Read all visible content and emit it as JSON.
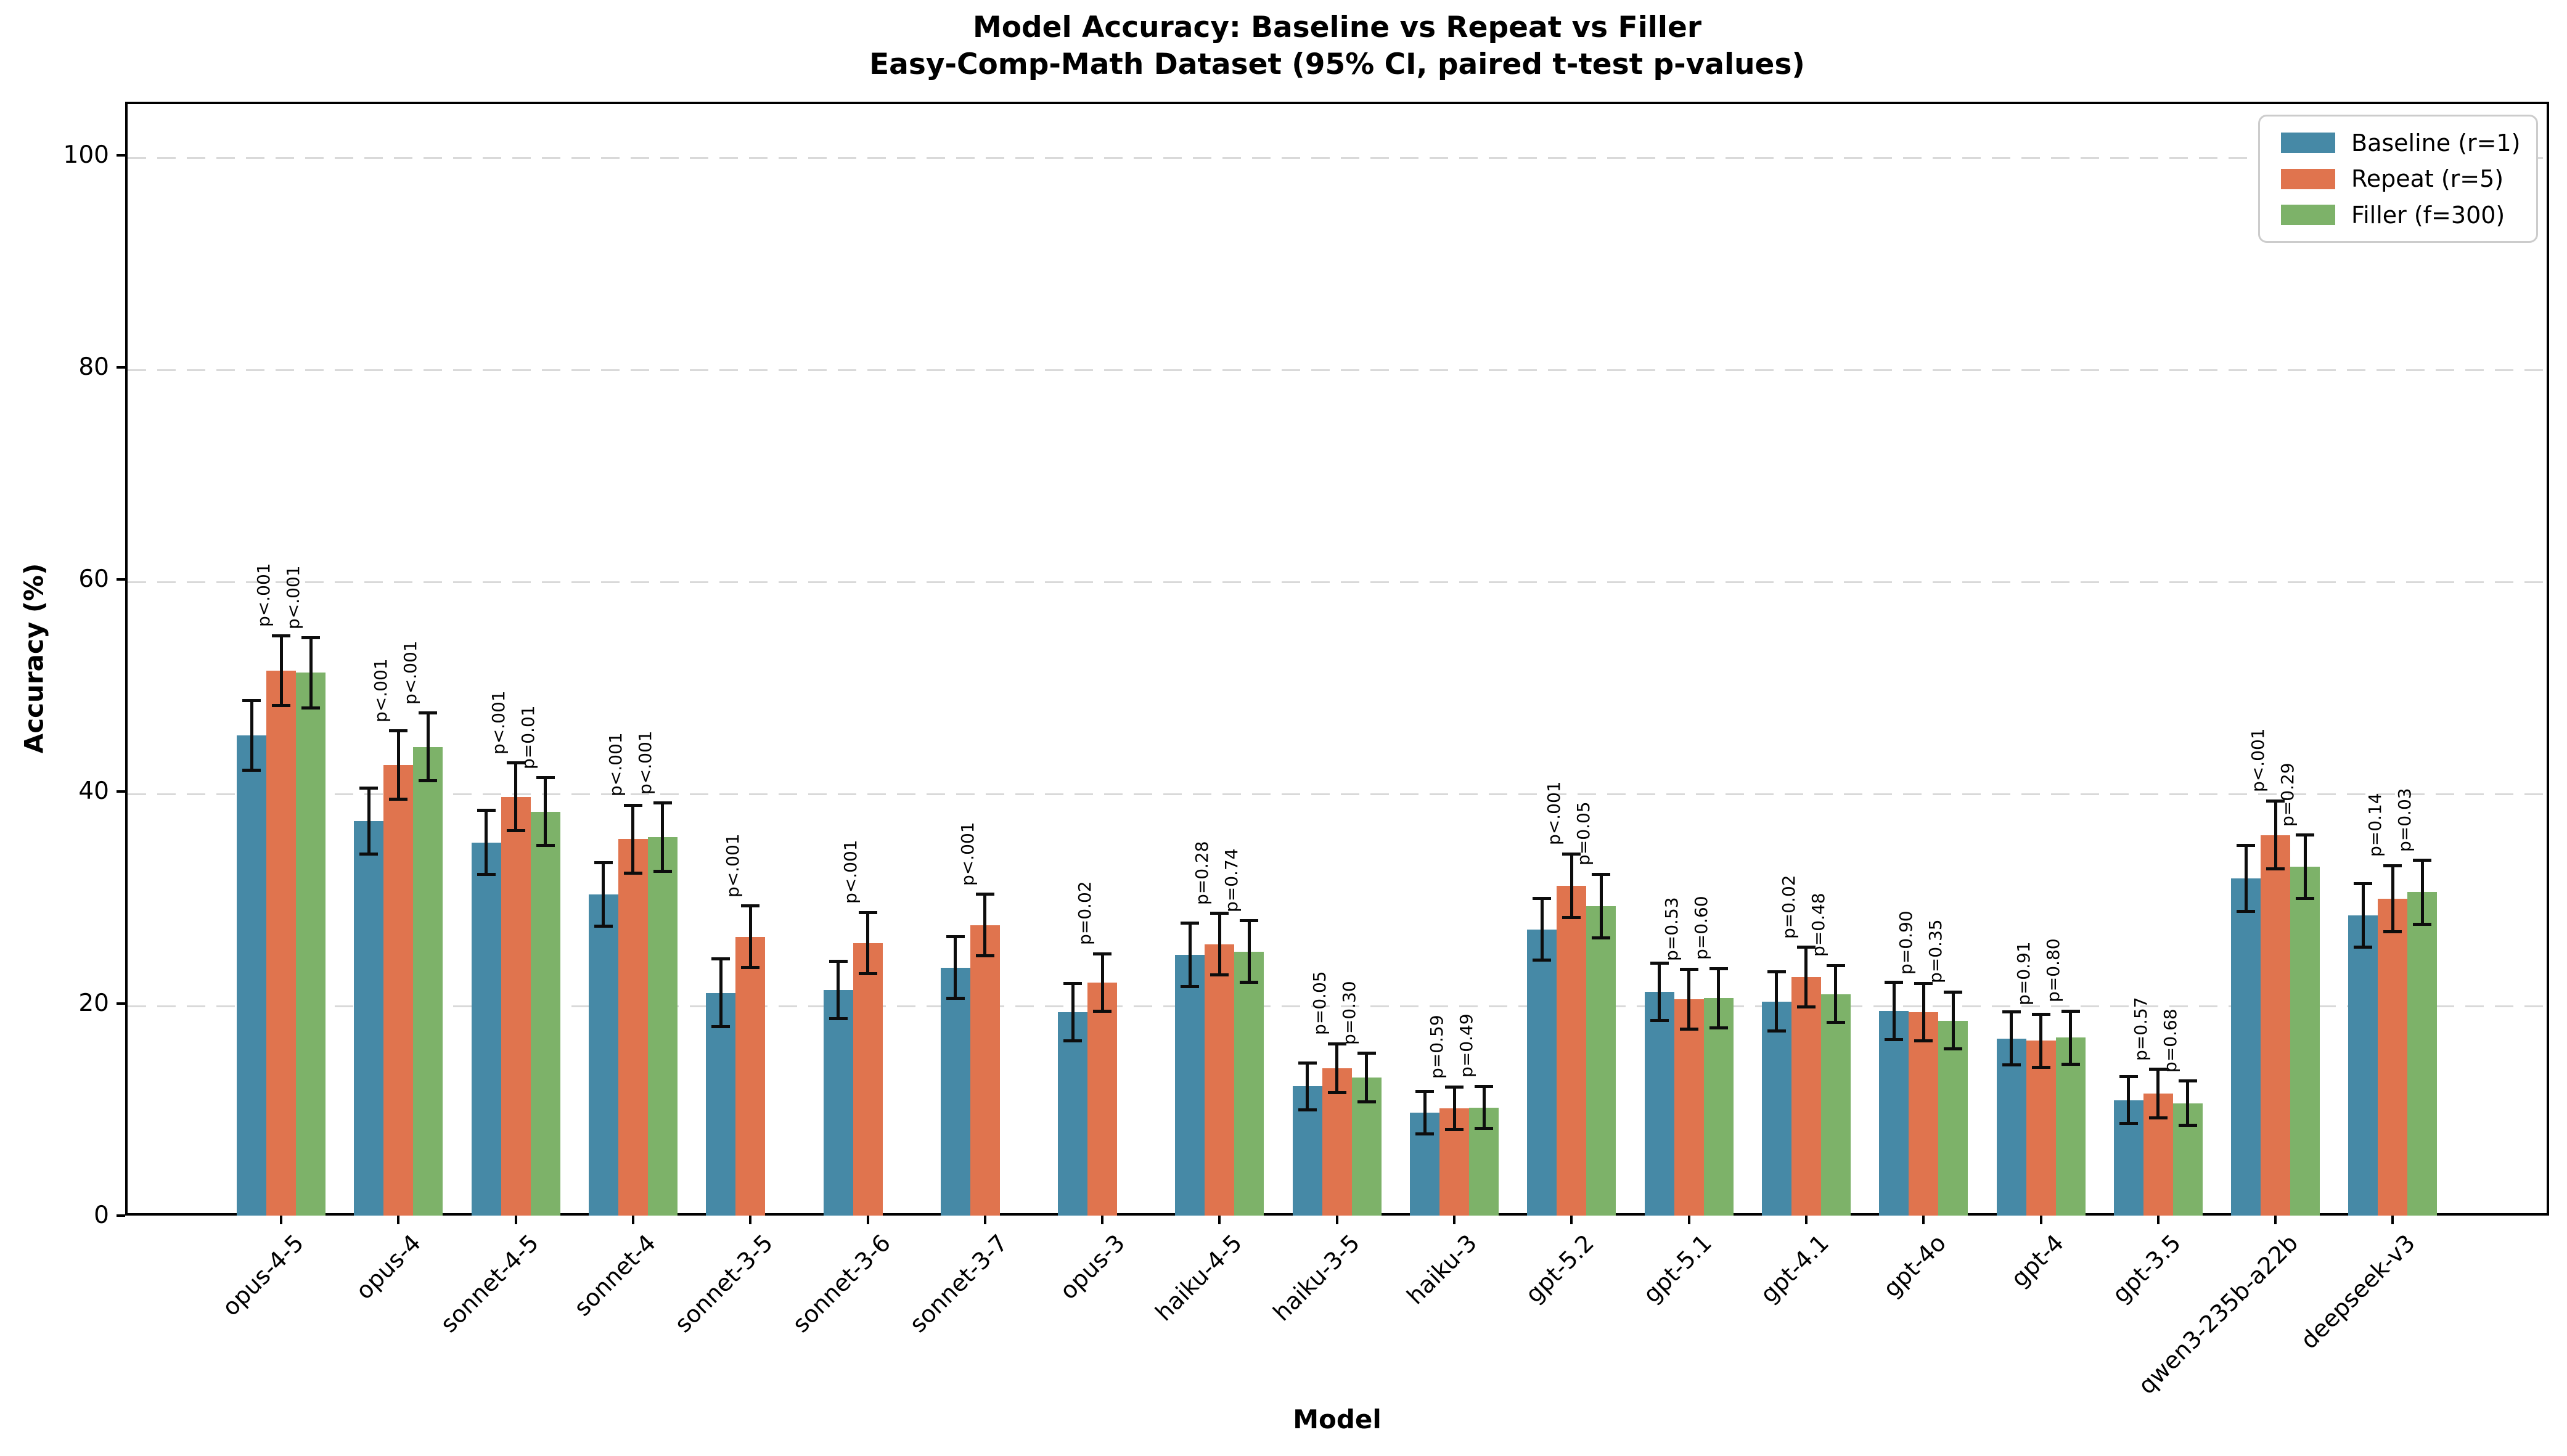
{
  "title": "Model Accuracy: Baseline vs Repeat vs Filler",
  "subtitle": "Easy-Comp-Math Dataset (95% CI, paired t-test p-values)",
  "axes": {
    "ylabel": "Accuracy (%)",
    "xlabel": "Model",
    "yticks": [
      0,
      20,
      40,
      60,
      80,
      100
    ],
    "ylim": [
      0,
      105
    ],
    "grid": "dashed horizontal"
  },
  "legend": {
    "position": "top-right",
    "items": [
      {
        "label": "Baseline (r=1)",
        "color": "#4689A6"
      },
      {
        "label": "Repeat (r=5)",
        "color": "#E0744E"
      },
      {
        "label": "Filler (f=300)",
        "color": "#7DB269"
      }
    ]
  },
  "chart_data": {
    "type": "bar",
    "title": "Model Accuracy: Baseline vs Repeat vs Filler",
    "subtitle": "Easy-Comp-Math Dataset (95% CI, paired t-test p-values)",
    "xlabel": "Model",
    "ylabel": "Accuracy (%)",
    "ylim": [
      0,
      105
    ],
    "legend_position": "upper right",
    "grid": true,
    "categories": [
      "opus-4-5",
      "opus-4",
      "sonnet-4-5",
      "sonnet-4",
      "sonnet-3-5",
      "sonnet-3-6",
      "sonnet-3-7",
      "opus-3",
      "haiku-4-5",
      "haiku-3-5",
      "haiku-3",
      "gpt-5.2",
      "gpt-5.1",
      "gpt-4.1",
      "gpt-4o",
      "gpt-4",
      "gpt-3.5",
      "qwen3-235b-a22b",
      "deepseek-v3"
    ],
    "series": [
      {
        "name": "Baseline (r=1)",
        "color": "#4689A6",
        "values": [
          45.3,
          37.2,
          35.2,
          30.3,
          21.0,
          21.3,
          23.4,
          19.2,
          24.6,
          12.2,
          9.7,
          27.0,
          21.1,
          20.2,
          19.3,
          16.7,
          10.9,
          31.8,
          28.3
        ],
        "errors": [
          3.3,
          3.1,
          3.0,
          3.0,
          3.2,
          2.7,
          2.9,
          2.7,
          3.0,
          2.2,
          2.0,
          2.9,
          2.7,
          2.8,
          2.7,
          2.5,
          2.2,
          3.1,
          3.0
        ],
        "p_labels": [
          null,
          null,
          null,
          null,
          null,
          null,
          null,
          null,
          null,
          null,
          null,
          null,
          null,
          null,
          null,
          null,
          null,
          null,
          null
        ]
      },
      {
        "name": "Repeat (r=5)",
        "color": "#E0744E",
        "values": [
          51.4,
          42.5,
          39.5,
          35.5,
          26.3,
          25.7,
          27.4,
          22.0,
          25.6,
          13.9,
          10.1,
          31.1,
          20.4,
          22.5,
          19.2,
          16.5,
          11.5,
          35.9,
          29.9
        ],
        "errors": [
          3.3,
          3.2,
          3.2,
          3.2,
          2.9,
          2.9,
          2.9,
          2.7,
          2.9,
          2.3,
          2.0,
          3.0,
          2.8,
          2.8,
          2.7,
          2.5,
          2.3,
          3.2,
          3.1
        ],
        "p_labels": [
          "p<.001",
          "p<.001",
          "p<.001",
          "p<.001",
          "p<.001",
          "p<.001",
          "p<.001",
          "p=0.02",
          "p=0.28",
          "p=0.05",
          "p=0.59",
          "p<.001",
          "p=0.53",
          "p=0.02",
          "p=0.90",
          "p=0.91",
          "p=0.57",
          "p<.001",
          "p=0.14"
        ]
      },
      {
        "name": "Filler (f=300)",
        "color": "#7DB269",
        "values": [
          51.2,
          44.2,
          38.1,
          35.7,
          null,
          null,
          null,
          null,
          24.9,
          13.0,
          10.2,
          29.2,
          20.5,
          20.9,
          18.4,
          16.8,
          10.6,
          32.9,
          30.5
        ],
        "errors": [
          3.3,
          3.2,
          3.2,
          3.2,
          null,
          null,
          null,
          null,
          2.9,
          2.3,
          2.0,
          3.0,
          2.8,
          2.7,
          2.7,
          2.5,
          2.1,
          3.0,
          3.0
        ],
        "p_labels": [
          "p<.001",
          "p<.001",
          "p=0.01",
          "p<.001",
          null,
          null,
          null,
          null,
          "p=0.74",
          "p=0.30",
          "p=0.49",
          "p=0.05",
          "p=0.60",
          "p=0.48",
          "p=0.35",
          "p=0.80",
          "p=0.68",
          "p=0.29",
          "p=0.03"
        ]
      }
    ]
  }
}
